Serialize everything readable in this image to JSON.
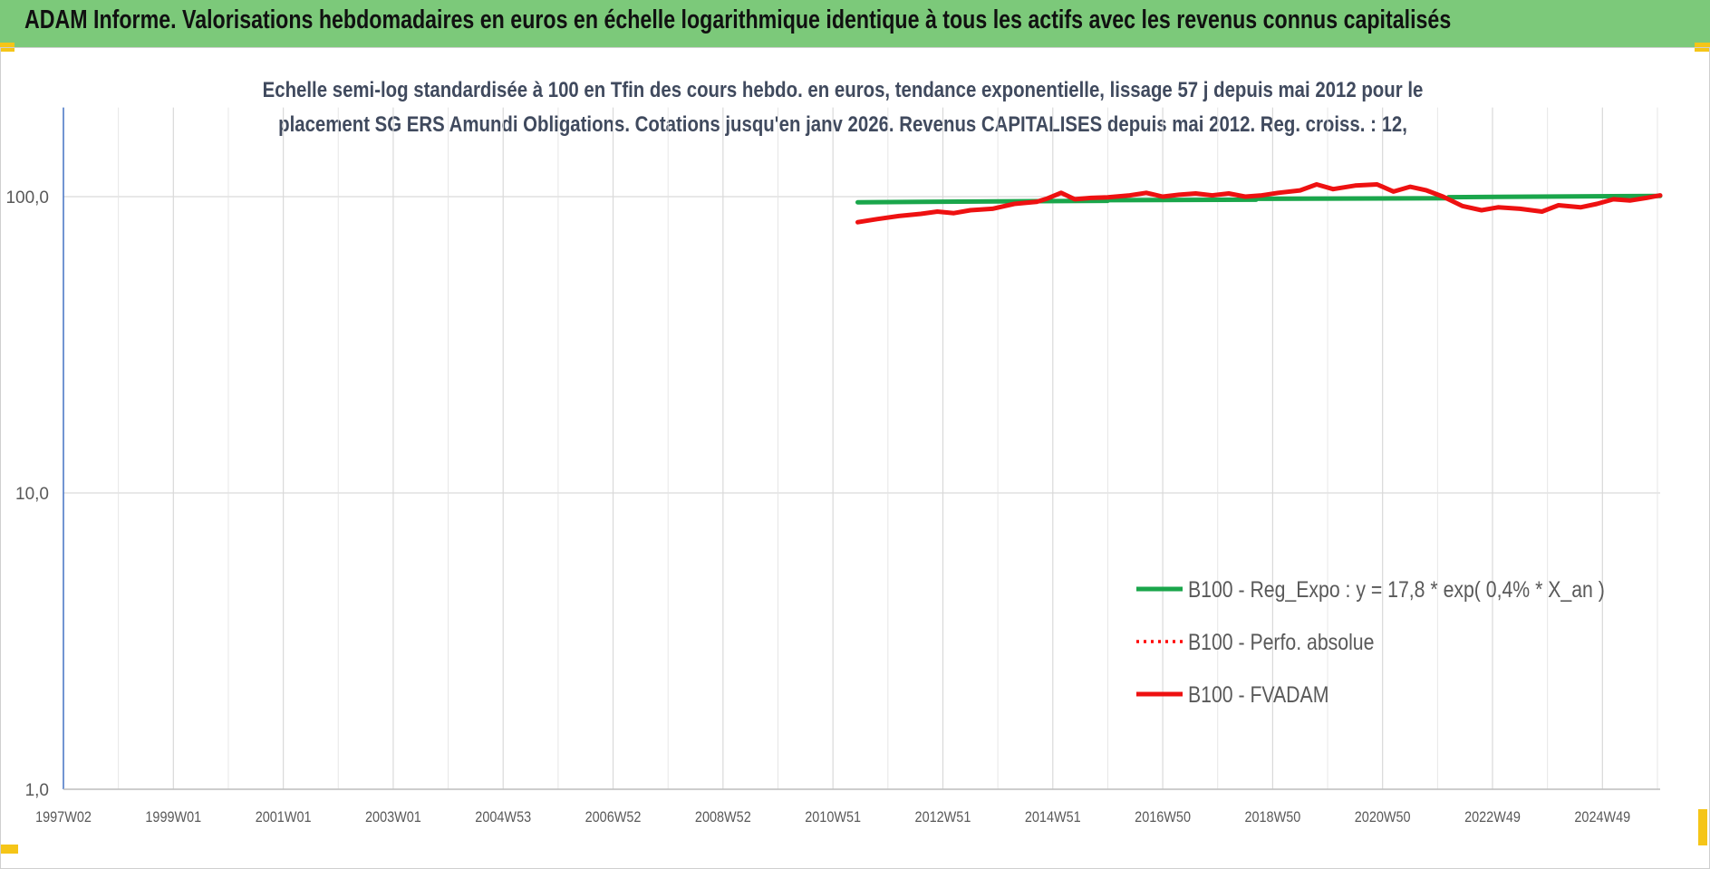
{
  "header": {
    "title": "ADAM Informe. Valorisations hebdomadaires en euros en échelle logarithmique identique à tous les actifs avec les revenus connus capitalisés"
  },
  "chart_data": {
    "type": "line",
    "subtitle_lines": [
      "Echelle semi-log standardisée à 100 en Tfin des cours hebdo. en euros, tendance exponentielle, lissage 57 j depuis mai 2012 pour le",
      "placement SG ERS Amundi Obligations. Cotations jusqu'en janv 2026. Revenus CAPITALISES depuis mai 2012. Reg. croiss. : 12,"
    ],
    "y_scale": "log",
    "ylim": [
      1,
      200
    ],
    "y_ticks": [
      {
        "value": 1,
        "label": "1,0"
      },
      {
        "value": 10,
        "label": "10,0"
      },
      {
        "value": 100,
        "label": "100,0"
      }
    ],
    "x_range": [
      1997.0,
      2026.05
    ],
    "x_ticks": [
      {
        "value": 1997.0,
        "label": "1997W02"
      },
      {
        "value": 1999.0,
        "label": "1999W01"
      },
      {
        "value": 2001.0,
        "label": "2001W01"
      },
      {
        "value": 2003.0,
        "label": "2003W01"
      },
      {
        "value": 2005.0,
        "label": "2004W53"
      },
      {
        "value": 2007.0,
        "label": "2006W52"
      },
      {
        "value": 2009.0,
        "label": "2008W52"
      },
      {
        "value": 2011.0,
        "label": "2010W51"
      },
      {
        "value": 2013.0,
        "label": "2012W51"
      },
      {
        "value": 2015.0,
        "label": "2014W51"
      },
      {
        "value": 2017.0,
        "label": "2016W50"
      },
      {
        "value": 2019.0,
        "label": "2018W50"
      },
      {
        "value": 2021.0,
        "label": "2020W50"
      },
      {
        "value": 2023.0,
        "label": "2022W49"
      },
      {
        "value": 2025.0,
        "label": "2024W49"
      }
    ],
    "grid": true,
    "legend_position": "bottom-right",
    "series": [
      {
        "name": "B100 - Reg_Expo : y = 17,8 * exp( 0,4% *  X_an )",
        "color": "#1aa64b",
        "style": "solid",
        "x": [
          2011.45,
          2016.0,
          2016.0,
          2018.7,
          2018.7,
          2022.2,
          2022.2,
          2026.05
        ],
        "y": [
          95.7,
          96.8,
          97.3,
          97.6,
          98.3,
          98.8,
          99.6,
          100.6
        ]
      },
      {
        "name": "B100 - Perfo. absolue",
        "color": "#ff0000",
        "style": "dotted",
        "x": [],
        "y": []
      },
      {
        "name": "B100 - FVADAM",
        "color": "#ee1111",
        "style": "solid",
        "x": [
          2011.45,
          2011.8,
          2012.2,
          2012.6,
          2012.9,
          2013.2,
          2013.5,
          2013.9,
          2014.3,
          2014.7,
          2014.9,
          2015.15,
          2015.4,
          2015.7,
          2016.0,
          2016.4,
          2016.7,
          2017.0,
          2017.3,
          2017.6,
          2017.9,
          2018.2,
          2018.5,
          2018.8,
          2019.1,
          2019.5,
          2019.8,
          2020.1,
          2020.5,
          2020.9,
          2021.2,
          2021.5,
          2021.8,
          2022.1,
          2022.45,
          2022.8,
          2023.1,
          2023.5,
          2023.9,
          2024.2,
          2024.6,
          2024.9,
          2025.2,
          2025.5,
          2025.8,
          2026.05
        ],
        "y": [
          82,
          84,
          86,
          87.5,
          89,
          88,
          90,
          91,
          94.5,
          96,
          98.5,
          103,
          98,
          99,
          99.5,
          101,
          103,
          100,
          101.5,
          102.5,
          101,
          102.5,
          100,
          101,
          103,
          105,
          110,
          106,
          109,
          110,
          104,
          108,
          105,
          100,
          93,
          90,
          92,
          91,
          89,
          93.5,
          92,
          94.5,
          98,
          97,
          99,
          101
        ]
      }
    ]
  }
}
